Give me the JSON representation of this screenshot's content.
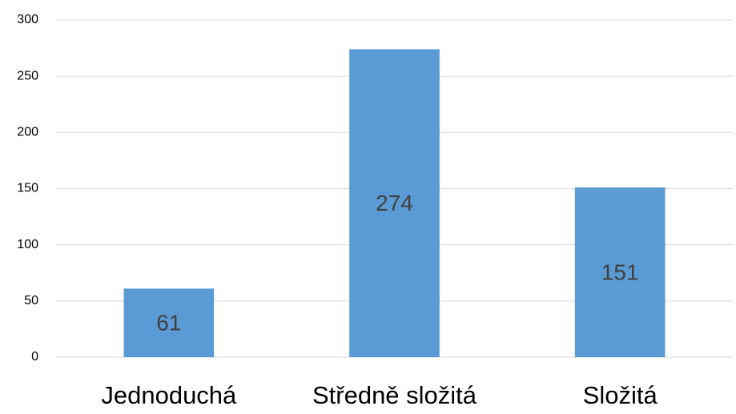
{
  "chart_data": {
    "type": "bar",
    "categories": [
      "Jednoduchá",
      "Středně složitá",
      "Složitá"
    ],
    "values": [
      61,
      274,
      151
    ],
    "color": "#5b9bd5",
    "ylim": [
      0,
      300
    ],
    "yticks": [
      0,
      50,
      100,
      150,
      200,
      250,
      300
    ],
    "grid": true
  }
}
